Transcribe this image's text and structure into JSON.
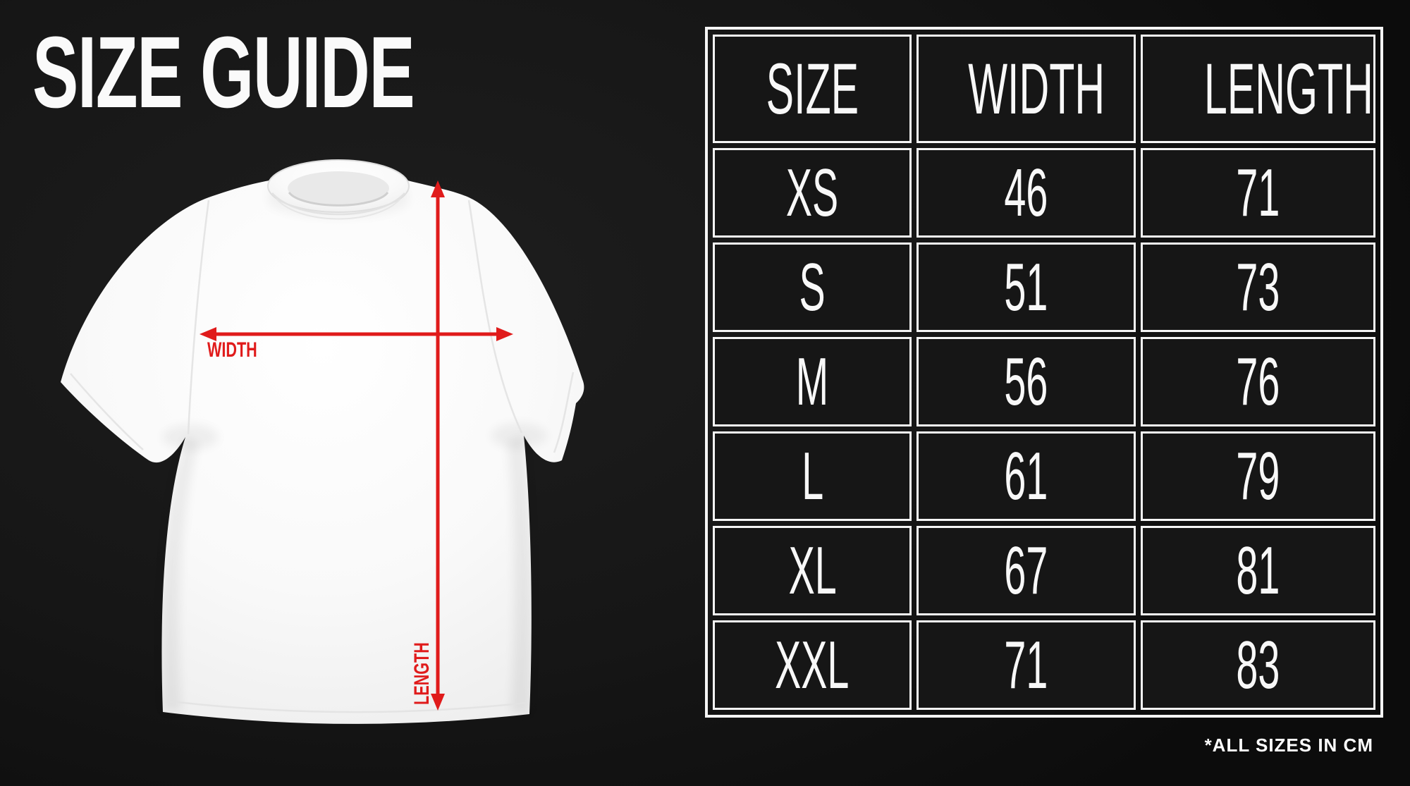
{
  "page": {
    "title": "SIZE GUIDE",
    "footnote": "*ALL SIZES IN CM",
    "background_color": "#141414",
    "accent_red": "#e01b1b",
    "table_border_color": "#f5f5f5",
    "text_color": "#f8f8f8"
  },
  "shirt_diagram": {
    "width_label": "WIDTH",
    "length_label": "LENGTH"
  },
  "size_table": {
    "columns": [
      "SIZE",
      "WIDTH",
      "LENGTH"
    ],
    "rows": [
      {
        "size": "XS",
        "width": "46",
        "length": "71"
      },
      {
        "size": "S",
        "width": "51",
        "length": "73"
      },
      {
        "size": "M",
        "width": "56",
        "length": "76"
      },
      {
        "size": "L",
        "width": "61",
        "length": "79"
      },
      {
        "size": "XL",
        "width": "67",
        "length": "81"
      },
      {
        "size": "XXL",
        "width": "71",
        "length": "83"
      }
    ]
  },
  "chart_data": {
    "type": "table",
    "title": "SIZE GUIDE",
    "columns": [
      "SIZE",
      "WIDTH",
      "LENGTH"
    ],
    "rows": [
      [
        "XS",
        46,
        71
      ],
      [
        "S",
        51,
        73
      ],
      [
        "M",
        56,
        76
      ],
      [
        "L",
        61,
        79
      ],
      [
        "XL",
        67,
        81
      ],
      [
        "XXL",
        71,
        83
      ]
    ],
    "units": "cm",
    "note": "*ALL SIZES IN CM"
  }
}
